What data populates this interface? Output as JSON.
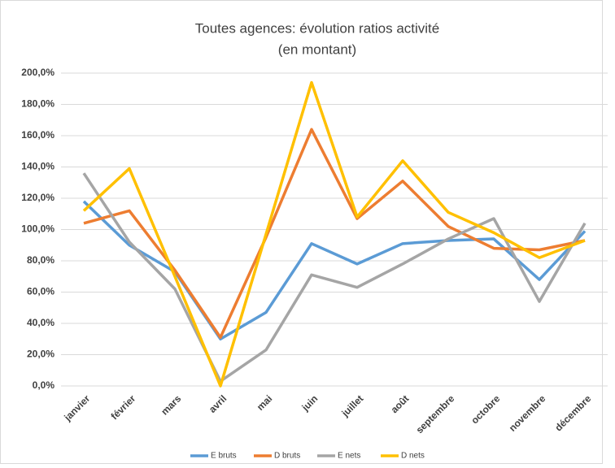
{
  "chart_data": {
    "type": "line",
    "title": "Toutes agences: évolution ratios activité",
    "subtitle": "(en montant)",
    "categories": [
      "janvier",
      "février",
      "mars",
      "avril",
      "mai",
      "juin",
      "juillet",
      "août",
      "septembre",
      "octobre",
      "novembre",
      "décembre"
    ],
    "series": [
      {
        "name": "E bruts",
        "color": "#5b9bd5",
        "values": [
          118,
          90,
          73,
          30,
          47,
          91,
          78,
          91,
          93,
          94,
          68,
          99
        ]
      },
      {
        "name": "D bruts",
        "color": "#ed7d31",
        "values": [
          104,
          112,
          74,
          31,
          95,
          164,
          107,
          131,
          102,
          88,
          87,
          93
        ]
      },
      {
        "name": "E nets",
        "color": "#a5a5a5",
        "values": [
          136,
          92,
          62,
          3,
          23,
          71,
          63,
          78,
          94,
          107,
          54,
          104
        ]
      },
      {
        "name": "D nets",
        "color": "#ffc000",
        "values": [
          112,
          139,
          70,
          0,
          97,
          194,
          108,
          144,
          111,
          98,
          82,
          93
        ]
      }
    ],
    "ylim": [
      0,
      200
    ],
    "yticks": [
      {
        "value": 0,
        "label": "0,0%"
      },
      {
        "value": 20,
        "label": "20,0%"
      },
      {
        "value": 40,
        "label": "40,0%"
      },
      {
        "value": 60,
        "label": "60,0%"
      },
      {
        "value": 80,
        "label": "80,0%"
      },
      {
        "value": 100,
        "label": "100,0%"
      },
      {
        "value": 120,
        "label": "120,0%"
      },
      {
        "value": 140,
        "label": "140,0%"
      },
      {
        "value": 160,
        "label": "160,0%"
      },
      {
        "value": 180,
        "label": "180,0%"
      },
      {
        "value": 200,
        "label": "200,0%"
      }
    ],
    "grid": true,
    "legend": "bottom"
  }
}
